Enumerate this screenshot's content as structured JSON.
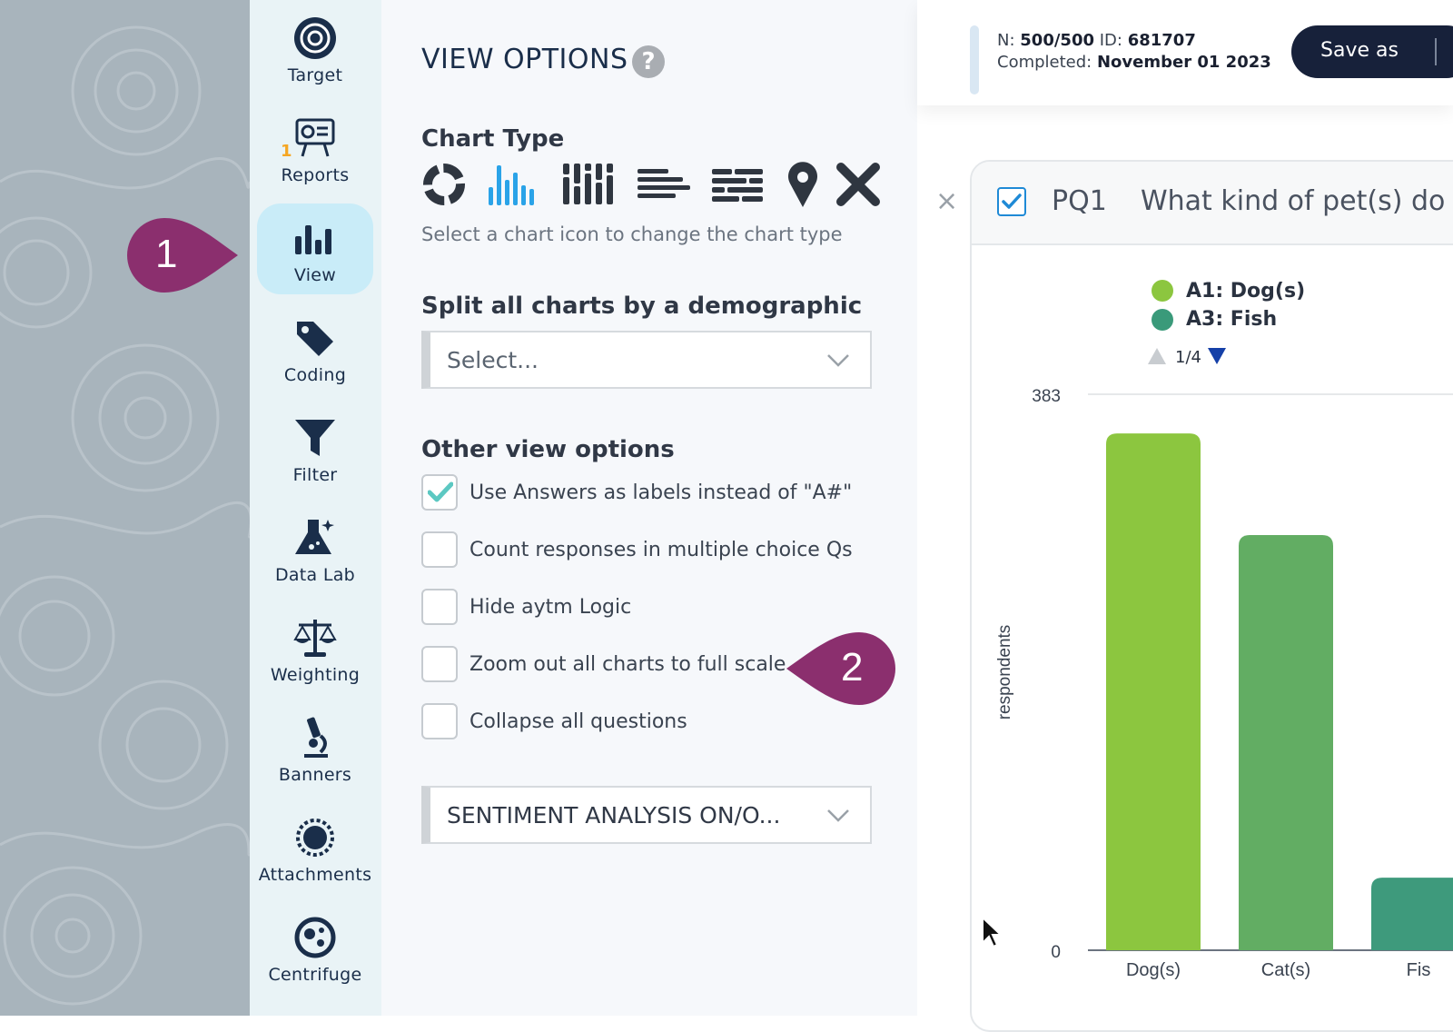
{
  "sidebar": {
    "items": [
      {
        "label": "Target",
        "icon": "target-icon"
      },
      {
        "label": "Reports",
        "icon": "reports-icon",
        "badge": "1"
      },
      {
        "label": "View",
        "icon": "view-chart-icon",
        "active": true
      },
      {
        "label": "Coding",
        "icon": "tag-icon"
      },
      {
        "label": "Filter",
        "icon": "filter-icon"
      },
      {
        "label": "Data Lab",
        "icon": "flask-icon"
      },
      {
        "label": "Weighting",
        "icon": "scale-icon"
      },
      {
        "label": "Banners",
        "icon": "microscope-icon"
      },
      {
        "label": "Attachments",
        "icon": "sun-icon"
      },
      {
        "label": "Centrifuge",
        "icon": "centrifuge-icon"
      }
    ]
  },
  "callouts": {
    "one": "1",
    "two": "2",
    "color": "#8b2f6e"
  },
  "panel": {
    "title": "VIEW OPTIONS",
    "help": "?",
    "chart_type": {
      "heading": "Chart Type",
      "icons": [
        "donut-chart-icon",
        "bar-chart-icon",
        "stacked-bar-icon",
        "horizontal-bar-icon",
        "stacked-horizontal-icon",
        "map-pin-icon",
        "close-icon"
      ],
      "selected": "bar-chart-icon",
      "hint": "Select a chart icon to change the chart type"
    },
    "split": {
      "heading": "Split all charts by a demographic",
      "value": "Select..."
    },
    "other": {
      "heading": "Other view options",
      "options": [
        {
          "label": "Use Answers as labels instead of \"A#\"",
          "checked": true
        },
        {
          "label": "Count responses in multiple choice Qs",
          "checked": false
        },
        {
          "label": "Hide aytm Logic",
          "checked": false
        },
        {
          "label": "Zoom out all charts to full scale",
          "checked": false
        },
        {
          "label": "Collapse all questions",
          "checked": false
        }
      ]
    },
    "sentiment": {
      "value": "SENTIMENT ANALYSIS ON/O..."
    }
  },
  "topbar": {
    "n_label": "N:",
    "n_value": "500/500",
    "id_label": "ID:",
    "id_value": "681707",
    "completed_label": "Completed:",
    "completed_value": "November 01 2023",
    "save_label": "Save as"
  },
  "card": {
    "close": "×",
    "qid": "PQ1",
    "question": "What kind of pet(s) do",
    "legend": [
      {
        "label": "A1: Dog(s)",
        "color": "#8cc63f"
      },
      {
        "label": "A3: Fish",
        "color": "#3a9a7a"
      }
    ],
    "pager": "1/4"
  },
  "chart_data": {
    "type": "bar",
    "title": "",
    "xlabel": "",
    "ylabel": "respondents",
    "ylim": [
      0,
      383
    ],
    "y_ticks": [
      "383",
      "0"
    ],
    "categories": [
      "Dog(s)",
      "Cat(s)",
      "Fis"
    ],
    "values": [
      356,
      286,
      50
    ],
    "colors": [
      "#8cc63f",
      "#62ad63",
      "#3e9a7c"
    ]
  }
}
